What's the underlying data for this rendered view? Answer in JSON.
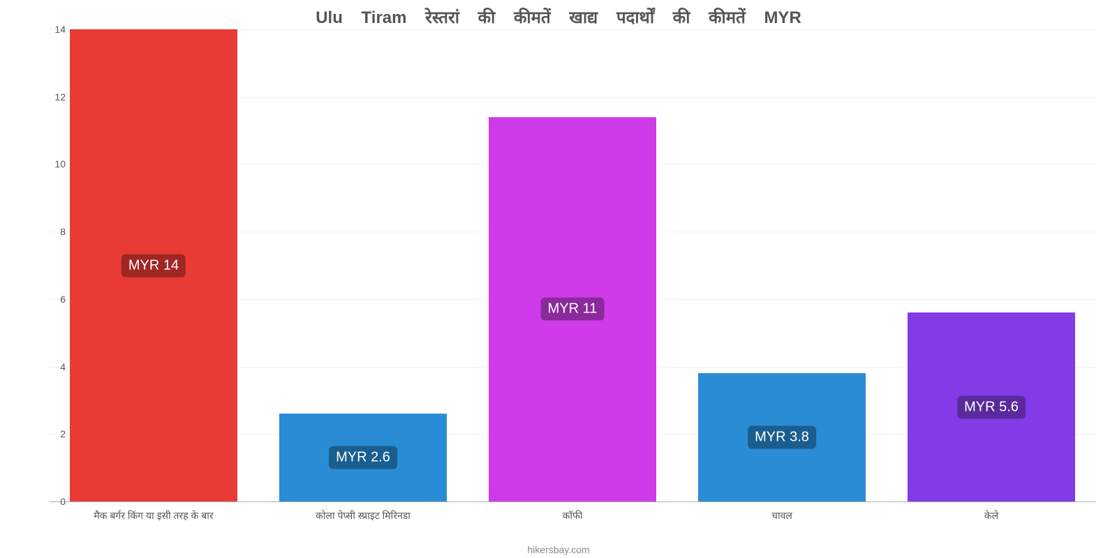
{
  "chart": {
    "type": "bar",
    "title": "Ulu Tiram रेस्तरां की कीमतें खाद्य पदार्थों की कीमतें MYR",
    "title_color": "#555555",
    "title_fontsize": 24,
    "background_color": "#ffffff",
    "grid_color": "#f2f2f2",
    "axis_color": "#b0b0b0",
    "ylim": [
      0,
      14
    ],
    "ytick_step": 2,
    "yticks": [
      0,
      2,
      4,
      6,
      8,
      10,
      12,
      14
    ],
    "bar_width": 0.8,
    "label_fontsize": 14,
    "value_label_fontsize": 20,
    "categories": [
      "मैक बर्गर किंग या इसी तरह के बार",
      "कोला पेप्सी स्प्राइट मिरिनडा",
      "कॉफी",
      "चावल",
      "केले"
    ],
    "values": [
      14,
      2.6,
      11.4,
      3.8,
      5.6
    ],
    "value_labels": [
      "MYR 14",
      "MYR 2.6",
      "MYR 11",
      "MYR 3.8",
      "MYR 5.6"
    ],
    "bar_colors": [
      "#e83b36",
      "#2a8cd4",
      "#cf3be8",
      "#2a8cd4",
      "#833be8"
    ],
    "value_label_bg": [
      "#a02622",
      "#1a5e8f",
      "#8a2a9c",
      "#1a5e8f",
      "#5a2a9c"
    ],
    "footer": "hikersbay.com",
    "footer_color": "#888888"
  }
}
